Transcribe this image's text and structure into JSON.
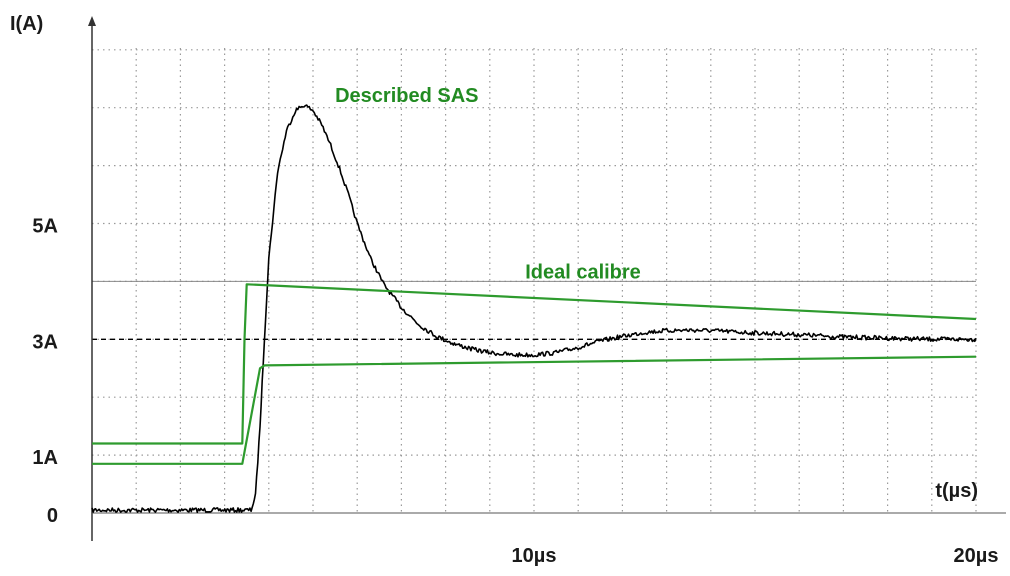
{
  "chart_data": {
    "type": "line",
    "title": "",
    "ylabel": "I(A)",
    "xlabel": "t(µs)",
    "xlim": [
      0,
      20
    ],
    "ylim": [
      0,
      8
    ],
    "grid": true,
    "grid_step": {
      "x": 1,
      "y": 1
    },
    "x_ticks": [
      {
        "value": 10,
        "label": "10µs"
      },
      {
        "value": 20,
        "label": "20µs"
      }
    ],
    "y_ticks": [
      {
        "value": 0,
        "label": "0"
      },
      {
        "value": 1,
        "label": "1A"
      },
      {
        "value": 3,
        "label": "3A"
      },
      {
        "value": 5,
        "label": "5A"
      }
    ],
    "reference_lines": [
      {
        "y": 3,
        "style": "dashed",
        "color": "#000000"
      },
      {
        "y": 4,
        "style": "solid",
        "color": "#888888"
      }
    ],
    "annotations": [
      {
        "text": "Described SAS",
        "color": "#228b22",
        "x": 5.5,
        "y": 7.1
      },
      {
        "text": "Ideal calibre",
        "color": "#228b22",
        "x": 9.8,
        "y": 4.05
      }
    ],
    "series": [
      {
        "color": "#000000",
        "noisy": true,
        "x": [
          0,
          3.6,
          3.7,
          3.8,
          3.9,
          4.0,
          4.2,
          4.4,
          4.6,
          4.8,
          5.0,
          5.2,
          5.4,
          5.6,
          5.8,
          6.0,
          6.3,
          6.6,
          7.0,
          7.4,
          7.8,
          8.2,
          8.6,
          9.0,
          9.5,
          10.0,
          10.5,
          11.0,
          11.5,
          12.0,
          12.5,
          13.0,
          13.5,
          14.0,
          14.5,
          15.0,
          16.0,
          17.0,
          18.0,
          19.0,
          20.0
        ],
        "y": [
          0.05,
          0.05,
          0.3,
          1.5,
          3.0,
          4.4,
          5.9,
          6.6,
          6.95,
          7.05,
          6.95,
          6.7,
          6.35,
          5.95,
          5.5,
          5.0,
          4.4,
          3.95,
          3.55,
          3.25,
          3.05,
          2.92,
          2.83,
          2.77,
          2.73,
          2.73,
          2.77,
          2.86,
          2.97,
          3.05,
          3.12,
          3.15,
          3.16,
          3.15,
          3.13,
          3.11,
          3.08,
          3.04,
          3.02,
          3.0,
          3.0
        ]
      },
      {
        "color": "#2e9b2e",
        "x": [
          0,
          3.4,
          3.45,
          3.5,
          20
        ],
        "y": [
          1.2,
          1.2,
          3.0,
          3.95,
          3.35
        ]
      },
      {
        "color": "#2e9b2e",
        "x": [
          0,
          3.4,
          3.8,
          3.9,
          20
        ],
        "y": [
          0.85,
          0.85,
          2.5,
          2.55,
          2.7
        ]
      }
    ]
  }
}
